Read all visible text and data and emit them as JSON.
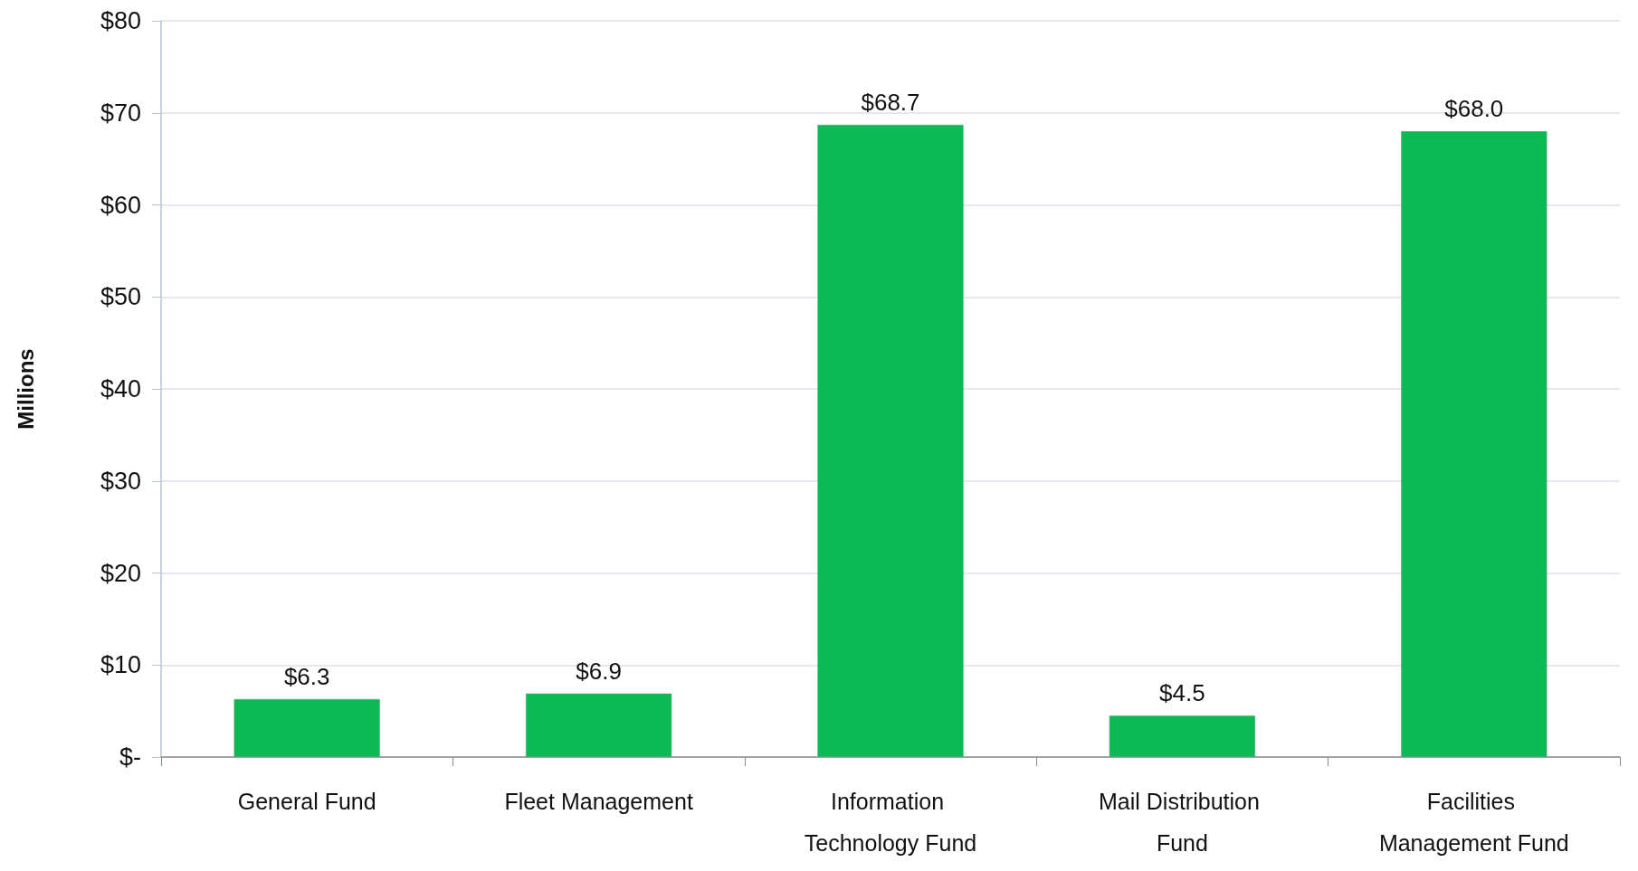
{
  "chart_data": {
    "type": "bar",
    "ylabel": "Millions",
    "categories": [
      "General Fund",
      "Fleet Management",
      "Information Technology Fund",
      "Mail Distribution Fund",
      "Facilities Management Fund"
    ],
    "values": [
      6.3,
      6.9,
      68.7,
      4.5,
      68.0
    ],
    "value_labels": [
      "$6.3",
      "$6.9",
      "$68.7",
      "$4.5",
      "$68.0"
    ],
    "color": "#0bb955",
    "ylim": [
      0,
      80
    ],
    "yticks": [
      {
        "value": 0,
        "label": "$-"
      },
      {
        "value": 10,
        "label": "$10"
      },
      {
        "value": 20,
        "label": "$20"
      },
      {
        "value": 30,
        "label": "$30"
      },
      {
        "value": 40,
        "label": "$40"
      },
      {
        "value": 50,
        "label": "$50"
      },
      {
        "value": 60,
        "label": "$60"
      },
      {
        "value": 70,
        "label": "$70"
      },
      {
        "value": 80,
        "label": "$80"
      }
    ],
    "grid": "y"
  }
}
